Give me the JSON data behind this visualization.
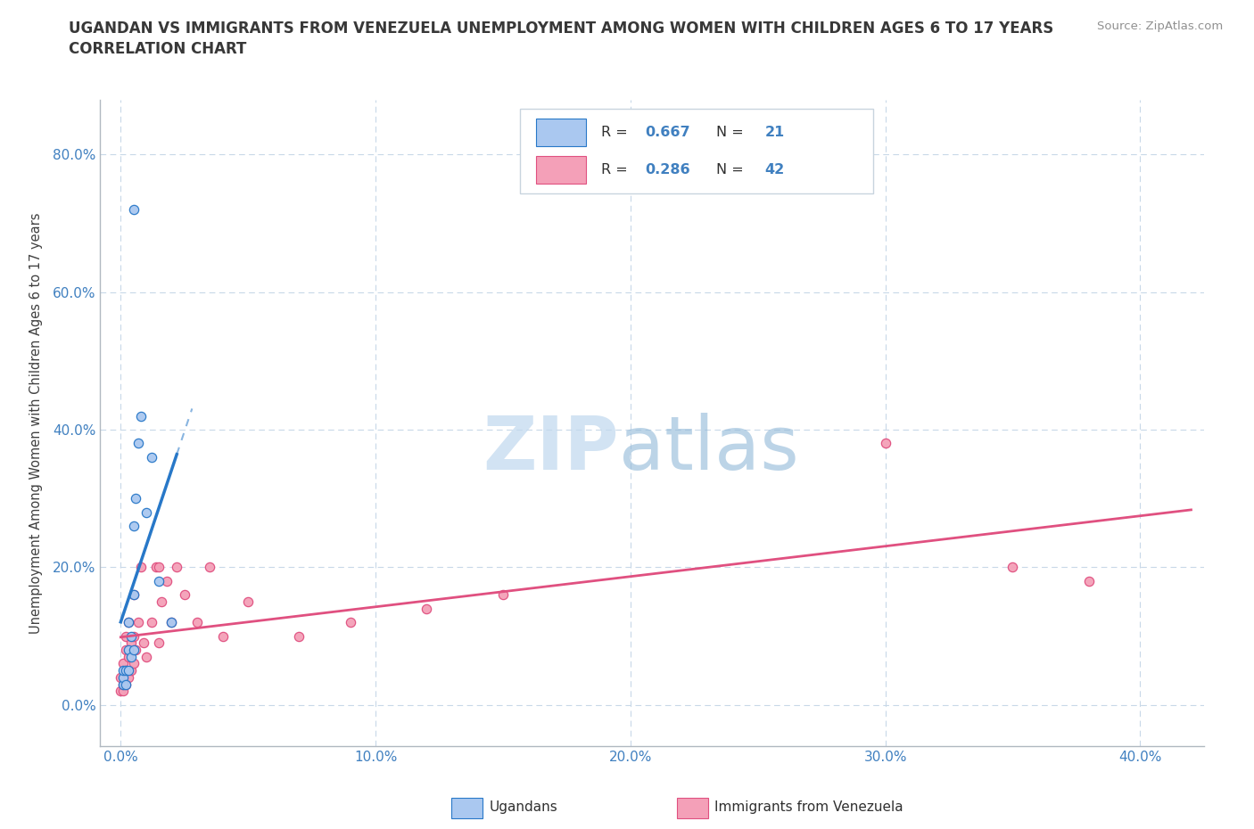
{
  "title_line1": "UGANDAN VS IMMIGRANTS FROM VENEZUELA UNEMPLOYMENT AMONG WOMEN WITH CHILDREN AGES 6 TO 17 YEARS",
  "title_line2": "CORRELATION CHART",
  "source": "Source: ZipAtlas.com",
  "ylabel": "Unemployment Among Women with Children Ages 6 to 17 years",
  "xlabel_ticks": [
    "0.0%",
    "10.0%",
    "20.0%",
    "30.0%",
    "40.0%"
  ],
  "xlabel_vals": [
    0.0,
    0.1,
    0.2,
    0.3,
    0.4
  ],
  "ylabel_ticks": [
    "0.0%",
    "20.0%",
    "40.0%",
    "60.0%",
    "80.0%"
  ],
  "ylabel_vals": [
    0.0,
    0.2,
    0.4,
    0.6,
    0.8
  ],
  "xlim": [
    -0.008,
    0.425
  ],
  "ylim": [
    -0.06,
    0.88
  ],
  "ugandan_R": 0.667,
  "ugandan_N": 21,
  "venezuela_R": 0.286,
  "venezuela_N": 42,
  "ugandan_color": "#aac8f0",
  "venezuela_color": "#f4a0b8",
  "ugandan_line_color": "#2878c8",
  "venezuela_line_color": "#e05080",
  "ugandan_scatter_x": [
    0.001,
    0.001,
    0.001,
    0.002,
    0.002,
    0.003,
    0.003,
    0.003,
    0.004,
    0.004,
    0.005,
    0.005,
    0.005,
    0.006,
    0.007,
    0.008,
    0.01,
    0.012,
    0.015,
    0.02,
    0.005
  ],
  "ugandan_scatter_y": [
    0.03,
    0.04,
    0.05,
    0.03,
    0.05,
    0.05,
    0.08,
    0.12,
    0.07,
    0.1,
    0.08,
    0.16,
    0.26,
    0.3,
    0.38,
    0.42,
    0.28,
    0.36,
    0.18,
    0.12,
    0.72
  ],
  "venezuela_scatter_x": [
    0.0,
    0.0,
    0.001,
    0.001,
    0.001,
    0.002,
    0.002,
    0.002,
    0.002,
    0.003,
    0.003,
    0.003,
    0.004,
    0.004,
    0.005,
    0.005,
    0.005,
    0.006,
    0.007,
    0.008,
    0.009,
    0.01,
    0.012,
    0.014,
    0.015,
    0.015,
    0.016,
    0.018,
    0.02,
    0.022,
    0.025,
    0.03,
    0.035,
    0.04,
    0.05,
    0.07,
    0.09,
    0.12,
    0.15,
    0.3,
    0.35,
    0.38
  ],
  "venezuela_scatter_y": [
    0.02,
    0.04,
    0.02,
    0.03,
    0.06,
    0.03,
    0.05,
    0.08,
    0.1,
    0.04,
    0.07,
    0.12,
    0.05,
    0.09,
    0.06,
    0.1,
    0.16,
    0.08,
    0.12,
    0.2,
    0.09,
    0.07,
    0.12,
    0.2,
    0.09,
    0.2,
    0.15,
    0.18,
    0.12,
    0.2,
    0.16,
    0.12,
    0.2,
    0.1,
    0.15,
    0.1,
    0.12,
    0.14,
    0.16,
    0.38,
    0.2,
    0.18
  ],
  "background_color": "#ffffff",
  "grid_color": "#c8d8e8",
  "title_color": "#383838",
  "axis_label_color": "#4080c0",
  "watermark_zip_color": "#c0d8ee",
  "watermark_atlas_color": "#90b8d8"
}
